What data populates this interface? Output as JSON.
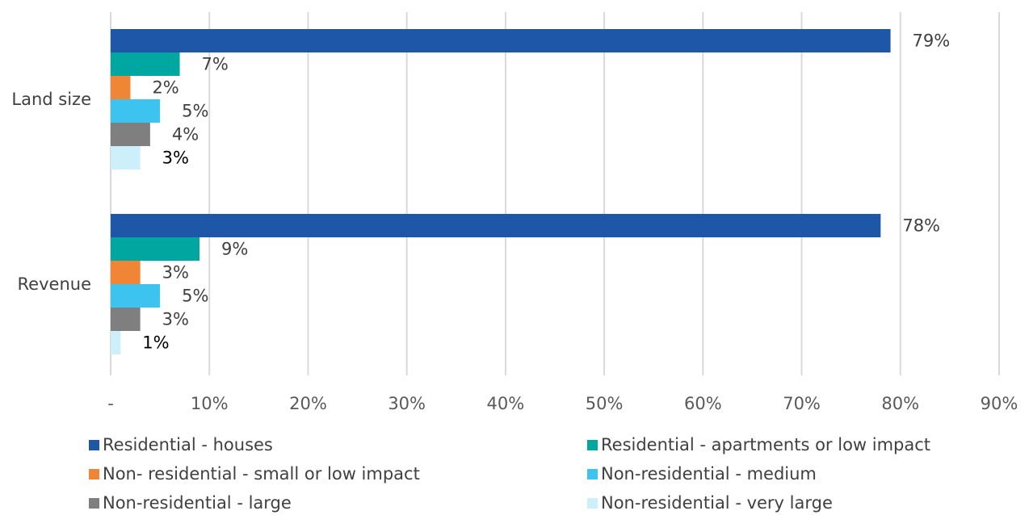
{
  "chart_data": {
    "type": "bar",
    "orientation": "horizontal",
    "categories": [
      "Land size",
      "Revenue"
    ],
    "series": [
      {
        "name": "Residential - houses",
        "color": "#1F57A8",
        "values": [
          79,
          78
        ],
        "labels": [
          "79%",
          "78%"
        ]
      },
      {
        "name": "Residential - apartments or low impact",
        "color": "#00A6A0",
        "values": [
          7,
          9
        ],
        "labels": [
          "7%",
          "9%"
        ]
      },
      {
        "name": "Non- residential - small or low impact",
        "color": "#F08535",
        "values": [
          2,
          3
        ],
        "labels": [
          "2%",
          "3%"
        ]
      },
      {
        "name": "Non-residential - medium",
        "color": "#3CC3F0",
        "values": [
          5,
          5
        ],
        "labels": [
          "5%",
          "5%"
        ]
      },
      {
        "name": "Non-residential - large",
        "color": "#7F7F7F",
        "values": [
          4,
          3
        ],
        "labels": [
          "4%",
          "3%"
        ]
      },
      {
        "name": "Non-residential - very large",
        "color": "#CCEFFA",
        "values": [
          3,
          1
        ],
        "labels": [
          "3%",
          "1%"
        ]
      }
    ],
    "xlim": [
      0,
      90
    ],
    "xticks": [
      "-",
      "10%",
      "20%",
      "30%",
      "40%",
      "50%",
      "60%",
      "70%",
      "80%",
      "90%"
    ],
    "grid": true,
    "legend": "bottom"
  }
}
